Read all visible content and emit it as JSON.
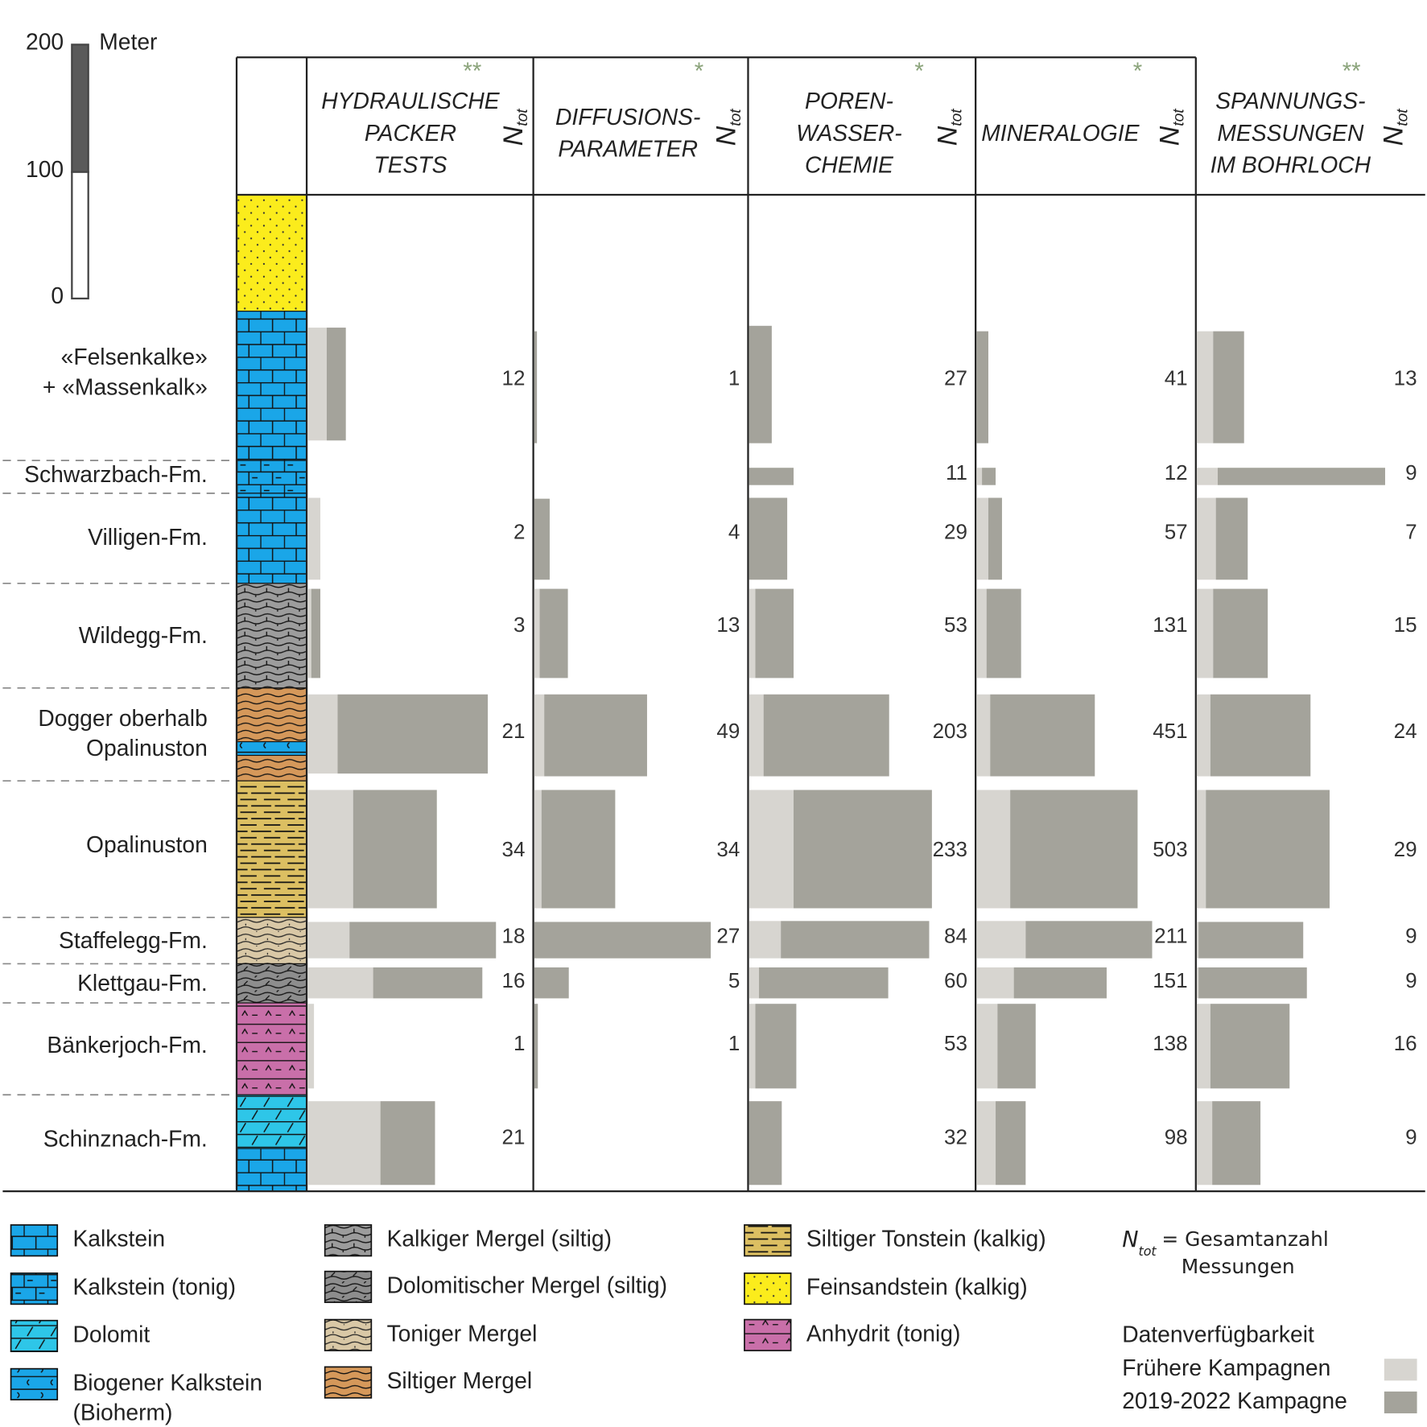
{
  "scale_bar": {
    "unit": "Meter",
    "labels": [
      200,
      100,
      0
    ]
  },
  "ntot_symbol": "N",
  "ntot_subscript": "tot",
  "columns": [
    {
      "title_lines": [
        "HYDRAULISCHE",
        "PACKER",
        "TESTS"
      ],
      "stars": "**",
      "n": [
        12,
        null,
        2,
        3,
        21,
        34,
        18,
        16,
        1,
        21
      ]
    },
    {
      "title_lines": [
        "DIFFUSIONS-",
        "PARAMETER"
      ],
      "stars": "*",
      "n": [
        1,
        null,
        4,
        13,
        49,
        34,
        27,
        5,
        1,
        null
      ]
    },
    {
      "title_lines": [
        "POREN-",
        "WASSER-",
        "CHEMIE"
      ],
      "stars": "*",
      "n": [
        27,
        11,
        29,
        53,
        203,
        233,
        84,
        60,
        53,
        32
      ]
    },
    {
      "title_lines": [
        "MINERALOGIE"
      ],
      "stars": "*",
      "n": [
        41,
        12,
        57,
        131,
        451,
        503,
        211,
        151,
        138,
        98
      ]
    },
    {
      "title_lines": [
        "SPANNUNGS-",
        "MESSUNGEN",
        "IM BOHRLOCH"
      ],
      "stars": "**",
      "n": [
        13,
        9,
        7,
        15,
        24,
        29,
        9,
        9,
        16,
        9
      ]
    }
  ],
  "formations": [
    {
      "label_lines": [
        "«Felsenkalke»",
        "+ «Massenkalk»"
      ]
    },
    {
      "label_lines": [
        "Schwarzbach-Fm."
      ]
    },
    {
      "label_lines": [
        "Villigen-Fm."
      ]
    },
    {
      "label_lines": [
        "Wildegg-Fm."
      ]
    },
    {
      "label_lines": [
        "Dogger oberhalb",
        "Opalinuston"
      ]
    },
    {
      "label_lines": [
        "Opalinuston"
      ]
    },
    {
      "label_lines": [
        "Staffelegg-Fm."
      ]
    },
    {
      "label_lines": [
        "Klettgau-Fm."
      ]
    },
    {
      "label_lines": [
        "Bänkerjoch-Fm."
      ]
    },
    {
      "label_lines": [
        "Schinznach-Fm."
      ]
    }
  ],
  "legend": {
    "lithologies": [
      {
        "lines": [
          "Kalkstein"
        ]
      },
      {
        "lines": [
          "Kalkstein (tonig)"
        ]
      },
      {
        "lines": [
          "Dolomit"
        ]
      },
      {
        "lines": [
          "Biogener Kalkstein",
          "(Bioherm)"
        ]
      },
      {
        "lines": [
          "Kalkiger Mergel (siltig)"
        ]
      },
      {
        "lines": [
          "Dolomitischer Mergel (siltig)"
        ]
      },
      {
        "lines": [
          "Toniger Mergel"
        ]
      },
      {
        "lines": [
          "Siltiger Mergel"
        ]
      },
      {
        "lines": [
          "Siltiger Tonstein (kalkig)"
        ]
      },
      {
        "lines": [
          "Feinsandstein (kalkig)"
        ]
      },
      {
        "lines": [
          "Anhydrit (tonig)"
        ]
      }
    ],
    "ntot_definition": {
      "equals": "= Gesamtanzahl",
      "line2": "Messungen"
    },
    "availability": {
      "title": "Datenverfügbarkeit",
      "items": [
        "Frühere Kampagnen",
        "2019-2022 Kampagne"
      ]
    }
  }
}
